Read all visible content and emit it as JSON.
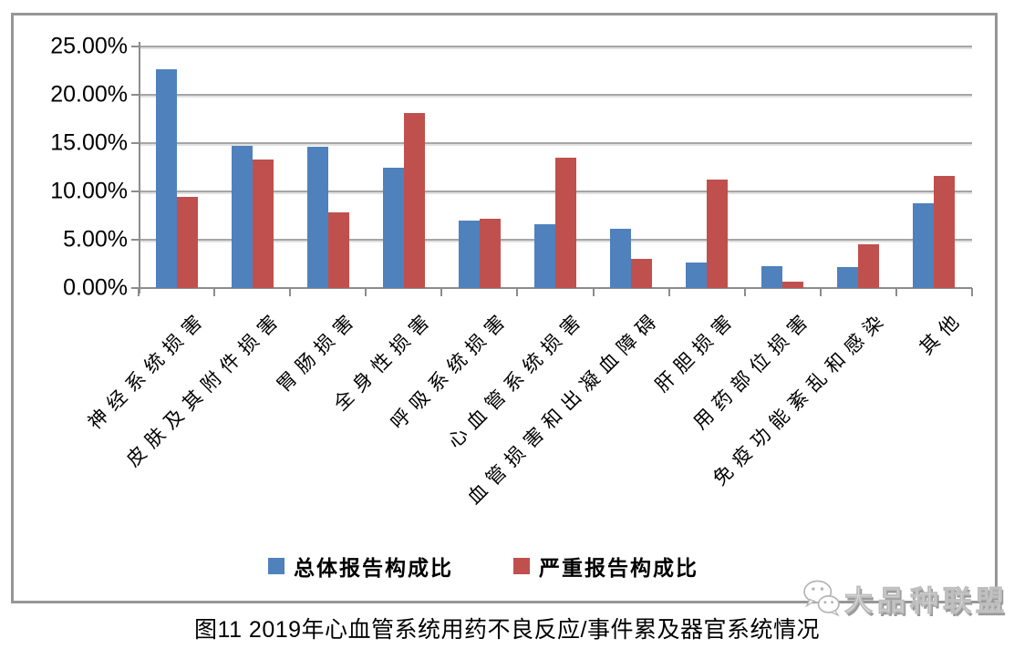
{
  "caption": "图11 2019年心血管系统用药不良反应/事件累及器官系统情况",
  "watermark": {
    "text": "大品种联盟",
    "icon": "wechat-chat-bubbles-icon"
  },
  "colors": {
    "total_series": "#4F81BD",
    "serious_series": "#C0504D",
    "gridline": "#A6A6A6",
    "axis": "#8C8C8C",
    "frame_border": "#969696"
  },
  "chart_data": {
    "type": "bar",
    "title": "图11 2019年心血管系统用药不良反应/事件累及器官系统情况",
    "categories": [
      "神经系统损害",
      "皮肤及其附件损害",
      "胃肠损害",
      "全身性损害",
      "呼吸系统损害",
      "心血管系统损害",
      "血管损害和出凝血障碍",
      "肝胆损害",
      "用药部位损害",
      "免疫功能紊乱和感染",
      "其他"
    ],
    "series": [
      {
        "name": "总体报告构成比",
        "color": "#4F81BD",
        "values": [
          22.6,
          14.7,
          14.6,
          12.5,
          7.0,
          6.6,
          6.1,
          2.6,
          2.3,
          2.2,
          8.8
        ]
      },
      {
        "name": "严重报告构成比",
        "color": "#C0504D",
        "values": [
          9.4,
          13.3,
          7.8,
          18.1,
          7.2,
          13.5,
          3.0,
          11.2,
          0.7,
          4.5,
          11.6
        ]
      }
    ],
    "y_axis": {
      "min": 0,
      "max": 25,
      "step": 5,
      "tick_labels": [
        "0.00%",
        "5.00%",
        "10.00%",
        "15.00%",
        "20.00%",
        "25.00%"
      ]
    },
    "xlabel": "",
    "ylabel": "",
    "grid": true,
    "legend_position": "bottom"
  }
}
